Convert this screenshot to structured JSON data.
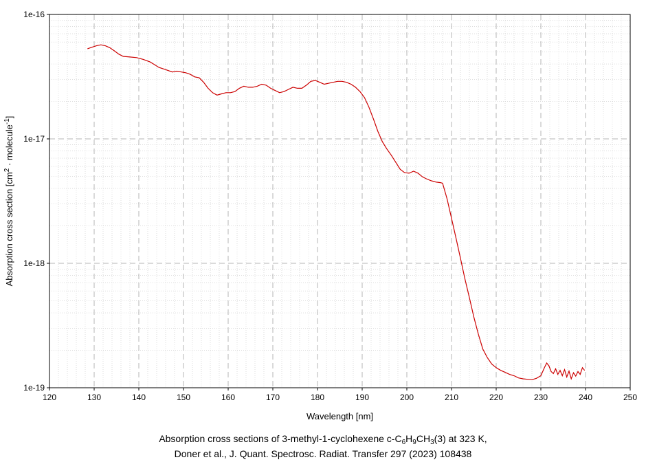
{
  "chart_data": {
    "type": "line",
    "xlabel": "Wavelength [nm]",
    "ylabel": "Absorption cross section [cm",
    "ylabel_sup1": "2",
    "ylabel_mid": " · molecule",
    "ylabel_sup2": "-1",
    "ylabel_end": "]",
    "xlim": [
      120,
      250
    ],
    "ylim": [
      1e-19,
      1e-16
    ],
    "yscale": "log",
    "grid": true,
    "x_ticks": [
      "120",
      "130",
      "140",
      "150",
      "160",
      "170",
      "180",
      "190",
      "200",
      "210",
      "220",
      "230",
      "240",
      "250"
    ],
    "y_ticks": [
      {
        "value": 1e-16,
        "label": "1e-16"
      },
      {
        "value": 1e-17,
        "label": "1e-17"
      },
      {
        "value": 1e-18,
        "label": "1e-18"
      },
      {
        "value": 1e-19,
        "label": "1e-19"
      }
    ],
    "series": [
      {
        "color": "#cc0000",
        "points": [
          [
            128.5,
            5.3e-17
          ],
          [
            129.5,
            5.45e-17
          ],
          [
            130.5,
            5.6e-17
          ],
          [
            131.5,
            5.7e-17
          ],
          [
            132.5,
            5.6e-17
          ],
          [
            133.5,
            5.4e-17
          ],
          [
            134.5,
            5.1e-17
          ],
          [
            135.5,
            4.8e-17
          ],
          [
            136.5,
            4.6e-17
          ],
          [
            138.0,
            4.55e-17
          ],
          [
            139.5,
            4.5e-17
          ],
          [
            141.0,
            4.35e-17
          ],
          [
            142.5,
            4.15e-17
          ],
          [
            143.5,
            3.95e-17
          ],
          [
            144.5,
            3.75e-17
          ],
          [
            145.5,
            3.65e-17
          ],
          [
            146.5,
            3.55e-17
          ],
          [
            147.5,
            3.45e-17
          ],
          [
            148.5,
            3.5e-17
          ],
          [
            149.5,
            3.45e-17
          ],
          [
            150.5,
            3.4e-17
          ],
          [
            151.5,
            3.3e-17
          ],
          [
            152.5,
            3.15e-17
          ],
          [
            153.5,
            3.1e-17
          ],
          [
            154.5,
            2.85e-17
          ],
          [
            155.5,
            2.55e-17
          ],
          [
            156.5,
            2.35e-17
          ],
          [
            157.5,
            2.25e-17
          ],
          [
            158.5,
            2.3e-17
          ],
          [
            159.5,
            2.35e-17
          ],
          [
            160.5,
            2.35e-17
          ],
          [
            161.5,
            2.4e-17
          ],
          [
            162.5,
            2.55e-17
          ],
          [
            163.5,
            2.65e-17
          ],
          [
            164.5,
            2.6e-17
          ],
          [
            165.5,
            2.6e-17
          ],
          [
            166.5,
            2.65e-17
          ],
          [
            167.5,
            2.75e-17
          ],
          [
            168.5,
            2.7e-17
          ],
          [
            169.5,
            2.55e-17
          ],
          [
            170.5,
            2.45e-17
          ],
          [
            171.5,
            2.35e-17
          ],
          [
            172.5,
            2.4e-17
          ],
          [
            173.5,
            2.5e-17
          ],
          [
            174.5,
            2.6e-17
          ],
          [
            175.5,
            2.55e-17
          ],
          [
            176.5,
            2.55e-17
          ],
          [
            177.5,
            2.7e-17
          ],
          [
            178.5,
            2.9e-17
          ],
          [
            179.5,
            2.95e-17
          ],
          [
            180.5,
            2.85e-17
          ],
          [
            181.5,
            2.75e-17
          ],
          [
            182.5,
            2.8e-17
          ],
          [
            183.5,
            2.85e-17
          ],
          [
            184.5,
            2.9e-17
          ],
          [
            185.5,
            2.9e-17
          ],
          [
            186.5,
            2.85e-17
          ],
          [
            187.5,
            2.75e-17
          ],
          [
            188.5,
            2.6e-17
          ],
          [
            189.5,
            2.4e-17
          ],
          [
            190.5,
            2.15e-17
          ],
          [
            191.5,
            1.8e-17
          ],
          [
            192.5,
            1.45e-17
          ],
          [
            193.5,
            1.15e-17
          ],
          [
            194.5,
            9.5e-18
          ],
          [
            195.5,
            8.3e-18
          ],
          [
            196.5,
            7.4e-18
          ],
          [
            197.5,
            6.5e-18
          ],
          [
            198.5,
            5.7e-18
          ],
          [
            199.5,
            5.35e-18
          ],
          [
            200.5,
            5.3e-18
          ],
          [
            201.5,
            5.5e-18
          ],
          [
            202.5,
            5.3e-18
          ],
          [
            203.5,
            4.95e-18
          ],
          [
            204.5,
            4.75e-18
          ],
          [
            205.5,
            4.6e-18
          ],
          [
            206.5,
            4.5e-18
          ],
          [
            207.5,
            4.45e-18
          ],
          [
            208.0,
            4.4e-18
          ],
          [
            209.0,
            3.3e-18
          ],
          [
            210.0,
            2.3e-18
          ],
          [
            211.0,
            1.6e-18
          ],
          [
            212.0,
            1.1e-18
          ],
          [
            213.0,
            7.5e-19
          ],
          [
            214.0,
            5.3e-19
          ],
          [
            215.0,
            3.7e-19
          ],
          [
            216.0,
            2.7e-19
          ],
          [
            217.0,
            2.05e-19
          ],
          [
            218.0,
            1.75e-19
          ],
          [
            219.0,
            1.55e-19
          ],
          [
            220.0,
            1.45e-19
          ],
          [
            221.0,
            1.38e-19
          ],
          [
            222.0,
            1.33e-19
          ],
          [
            223.0,
            1.28e-19
          ],
          [
            224.0,
            1.25e-19
          ],
          [
            225.0,
            1.2e-19
          ],
          [
            226.0,
            1.18e-19
          ],
          [
            227.0,
            1.17e-19
          ],
          [
            228.0,
            1.16e-19
          ],
          [
            229.0,
            1.19e-19
          ],
          [
            230.0,
            1.25e-19
          ],
          [
            230.8,
            1.45e-19
          ],
          [
            231.3,
            1.58e-19
          ],
          [
            231.8,
            1.5e-19
          ],
          [
            232.3,
            1.35e-19
          ],
          [
            232.8,
            1.3e-19
          ],
          [
            233.3,
            1.42e-19
          ],
          [
            233.8,
            1.28e-19
          ],
          [
            234.3,
            1.38e-19
          ],
          [
            234.8,
            1.25e-19
          ],
          [
            235.3,
            1.4e-19
          ],
          [
            235.8,
            1.22e-19
          ],
          [
            236.3,
            1.36e-19
          ],
          [
            236.8,
            1.18e-19
          ],
          [
            237.3,
            1.32e-19
          ],
          [
            237.8,
            1.24e-19
          ],
          [
            238.3,
            1.35e-19
          ],
          [
            238.8,
            1.28e-19
          ],
          [
            239.3,
            1.45e-19
          ],
          [
            239.8,
            1.38e-19
          ]
        ]
      }
    ]
  },
  "caption": {
    "line1_prefix": "Absorption cross sections of 3-methyl-1-cyclohexene c-C",
    "line1_sub1": "6",
    "line1_mid1": "H",
    "line1_sub2": "9",
    "line1_mid2": "CH",
    "line1_sub3": "3",
    "line1_suffix": "(3) at 323 K,",
    "line2": "Doner et al., J. Quant. Spectrosc. Radiat. Transfer 297 (2023) 108438"
  }
}
